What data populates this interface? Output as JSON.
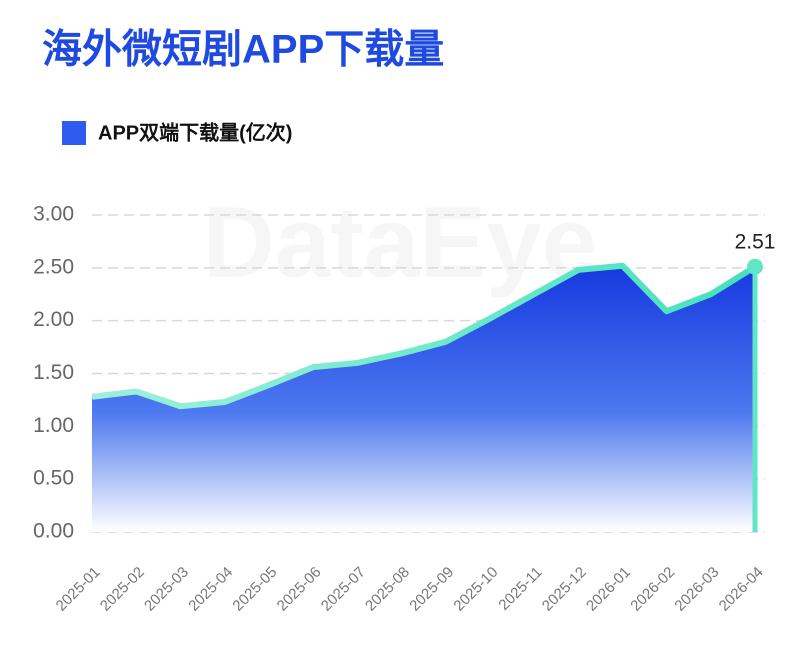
{
  "chart_data": {
    "type": "area",
    "title": "海外微短剧APP下载量",
    "watermark": "DataEye",
    "x": [
      "2025-01",
      "2025-02",
      "2025-03",
      "2025-04",
      "2025-05",
      "2025-06",
      "2025-07",
      "2025-08",
      "2025-09",
      "2025-10",
      "2025-11",
      "2025-12",
      "2026-01",
      "2026-02",
      "2026-03",
      "2026-04"
    ],
    "series": [
      {
        "name": "APP双端下载量(亿次)",
        "color": "#2f5cf0",
        "line_color": "#5fe6c6",
        "values": [
          1.28,
          1.33,
          1.19,
          1.23,
          1.39,
          1.56,
          1.6,
          1.69,
          1.8,
          2.02,
          2.25,
          2.48,
          2.52,
          2.09,
          2.25,
          2.51
        ]
      }
    ],
    "labeled_points": [
      15
    ],
    "ylim": [
      0,
      3
    ],
    "yticks": [
      {
        "value": 0,
        "label": "0.00"
      },
      {
        "value": 0.5,
        "label": "0.50"
      },
      {
        "value": 1,
        "label": "1.00"
      },
      {
        "value": 1.5,
        "label": "1.50"
      },
      {
        "value": 2,
        "label": "2.00"
      },
      {
        "value": 2.5,
        "label": "2.50"
      },
      {
        "value": 3,
        "label": "3.00"
      }
    ],
    "grid": true
  }
}
